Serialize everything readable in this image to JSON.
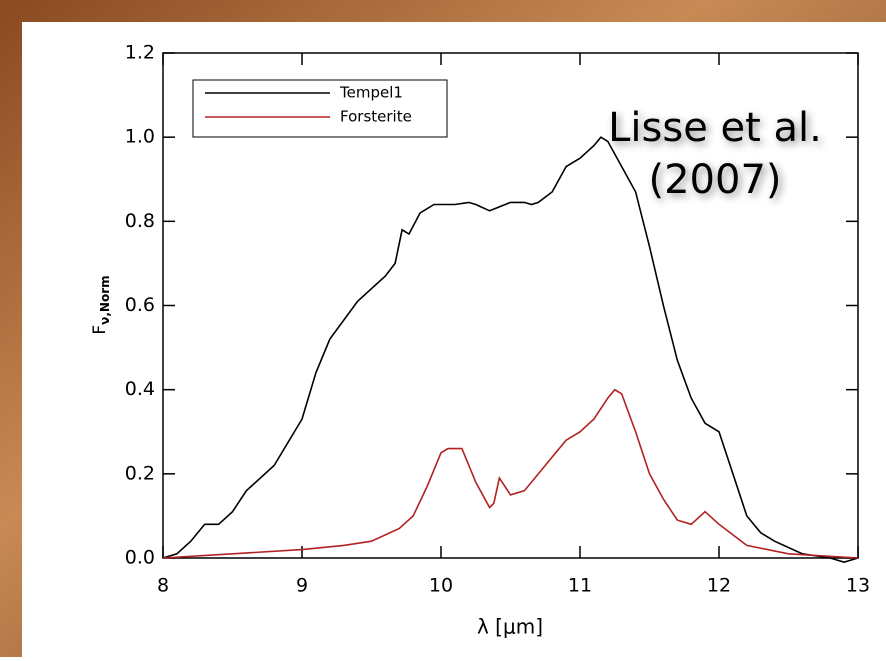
{
  "chart_data": {
    "type": "line",
    "xlabel": "λ [μm]",
    "ylabel": "F",
    "ylabel_sub": "ν,Norm",
    "annotation": [
      "Lisse et al.",
      "(2007)"
    ],
    "xlim": [
      8,
      13
    ],
    "ylim": [
      0,
      1.2
    ],
    "xticks": [
      8,
      9,
      10,
      11,
      12,
      13
    ],
    "yticks": [
      {
        "value": 0,
        "label": "0.0"
      },
      0.2,
      0.4,
      0.6,
      0.8,
      {
        "value": 1,
        "label": "1.0"
      },
      1.2
    ],
    "legend": "top-left",
    "series": [
      {
        "name": "Tempel1",
        "color": "#000000",
        "x": [
          8.0,
          8.1,
          8.2,
          8.3,
          8.4,
          8.5,
          8.6,
          8.8,
          9.0,
          9.1,
          9.2,
          9.4,
          9.6,
          9.67,
          9.72,
          9.77,
          9.85,
          9.95,
          10.1,
          10.2,
          10.25,
          10.35,
          10.5,
          10.6,
          10.65,
          10.7,
          10.8,
          10.9,
          11.0,
          11.1,
          11.15,
          11.2,
          11.3,
          11.4,
          11.5,
          11.6,
          11.7,
          11.8,
          11.9,
          12.0,
          12.1,
          12.2,
          12.3,
          12.4,
          12.6,
          12.8,
          12.9,
          13.0
        ],
        "values": [
          0.0,
          0.01,
          0.04,
          0.08,
          0.08,
          0.11,
          0.16,
          0.22,
          0.33,
          0.44,
          0.52,
          0.61,
          0.67,
          0.7,
          0.78,
          0.77,
          0.82,
          0.84,
          0.84,
          0.845,
          0.84,
          0.825,
          0.845,
          0.845,
          0.84,
          0.845,
          0.87,
          0.93,
          0.95,
          0.98,
          1.0,
          0.99,
          0.93,
          0.87,
          0.74,
          0.6,
          0.47,
          0.38,
          0.32,
          0.3,
          0.2,
          0.1,
          0.06,
          0.04,
          0.01,
          0.0,
          -0.01,
          0.0
        ]
      },
      {
        "name": "Forsterite",
        "color": "#b22222",
        "x": [
          8.0,
          8.5,
          9.0,
          9.3,
          9.5,
          9.7,
          9.8,
          9.9,
          10.0,
          10.05,
          10.15,
          10.25,
          10.35,
          10.38,
          10.42,
          10.5,
          10.6,
          10.8,
          10.9,
          11.0,
          11.1,
          11.2,
          11.25,
          11.3,
          11.4,
          11.5,
          11.6,
          11.7,
          11.8,
          11.9,
          12.0,
          12.2,
          12.5,
          13.0
        ],
        "values": [
          0.0,
          0.01,
          0.02,
          0.03,
          0.04,
          0.07,
          0.1,
          0.17,
          0.25,
          0.26,
          0.26,
          0.18,
          0.12,
          0.13,
          0.19,
          0.15,
          0.16,
          0.24,
          0.28,
          0.3,
          0.33,
          0.38,
          0.4,
          0.39,
          0.3,
          0.2,
          0.14,
          0.09,
          0.08,
          0.11,
          0.08,
          0.03,
          0.01,
          0.0
        ]
      }
    ]
  }
}
